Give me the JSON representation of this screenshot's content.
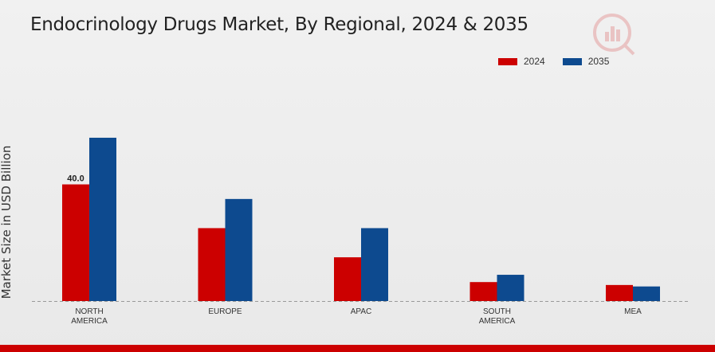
{
  "chart_data": {
    "type": "bar",
    "title": "Endocrinology Drugs Market, By Regional, 2024 & 2035",
    "ylabel": "Market Size in USD Billion",
    "xlabel": "",
    "categories": [
      "NORTH AMERICA",
      "EUROPE",
      "APAC",
      "SOUTH AMERICA",
      "MEA"
    ],
    "series": [
      {
        "name": "2024",
        "color": "#cc0000",
        "values": [
          40.0,
          25.0,
          15.0,
          6.5,
          5.5
        ]
      },
      {
        "name": "2035",
        "color": "#0d4a8f",
        "values": [
          56.0,
          35.0,
          25.0,
          9.0,
          5.0
        ]
      }
    ],
    "data_labels": [
      {
        "series": 0,
        "index": 0,
        "text": "40.0"
      }
    ],
    "ylim": [
      0,
      65
    ],
    "grid": false,
    "legend_position": "top-right"
  }
}
